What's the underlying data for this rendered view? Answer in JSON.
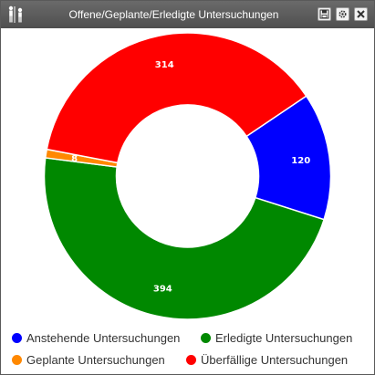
{
  "window": {
    "title": "Offene/Geplante/Erledigte Untersuchungen",
    "buttons": {
      "save_icon": "floppy-disk-icon",
      "settings_icon": "gear-icon",
      "close_icon": "close-icon"
    },
    "app_icon": "people-icon"
  },
  "chart_data": {
    "type": "pie",
    "donut": true,
    "title": "",
    "start_angle_degrees_from_top": 56,
    "slices": [
      {
        "name": "Anstehende Untersuchungen",
        "value": 120,
        "color": "#0000ff"
      },
      {
        "name": "Erledigte Untersuchungen",
        "value": 394,
        "color": "#008800"
      },
      {
        "name": "Geplante Untersuchungen",
        "value": 8,
        "color": "#ff8800"
      },
      {
        "name": "Überfällige Untersuchungen",
        "value": 314,
        "color": "#ff0000"
      }
    ],
    "data_labels": [
      "120",
      "394",
      "8",
      "314"
    ],
    "legend_position": "bottom"
  }
}
